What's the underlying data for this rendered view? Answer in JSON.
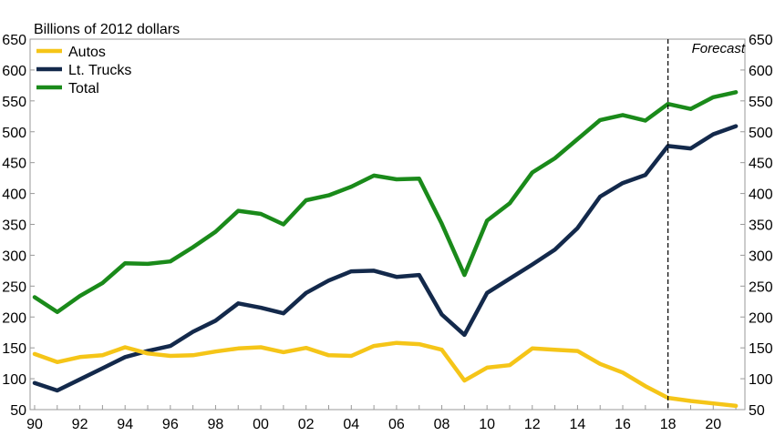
{
  "chart_data": {
    "type": "line",
    "ylabel": "Billions of 2012 dollars",
    "ylim": [
      50,
      650
    ],
    "y_ticks": [
      50,
      100,
      150,
      200,
      250,
      300,
      350,
      400,
      450,
      500,
      550,
      600,
      650
    ],
    "x": [
      1990,
      1991,
      1992,
      1993,
      1994,
      1995,
      1996,
      1997,
      1998,
      1999,
      2000,
      2001,
      2002,
      2003,
      2004,
      2005,
      2006,
      2007,
      2008,
      2009,
      2010,
      2011,
      2012,
      2013,
      2014,
      2015,
      2016,
      2017,
      2018,
      2019,
      2020,
      2021
    ],
    "x_ticks": [
      {
        "value": 1990,
        "label": "90"
      },
      {
        "value": 1992,
        "label": "92"
      },
      {
        "value": 1994,
        "label": "94"
      },
      {
        "value": 1996,
        "label": "96"
      },
      {
        "value": 1998,
        "label": "98"
      },
      {
        "value": 2000,
        "label": "00"
      },
      {
        "value": 2002,
        "label": "02"
      },
      {
        "value": 2004,
        "label": "04"
      },
      {
        "value": 2006,
        "label": "06"
      },
      {
        "value": 2008,
        "label": "08"
      },
      {
        "value": 2010,
        "label": "10"
      },
      {
        "value": 2012,
        "label": "12"
      },
      {
        "value": 2014,
        "label": "14"
      },
      {
        "value": 2016,
        "label": "16"
      },
      {
        "value": 2018,
        "label": "18"
      },
      {
        "value": 2020,
        "label": "20"
      }
    ],
    "grid": false,
    "legend_position": "top-left",
    "series": [
      {
        "name": "Autos",
        "color": "#f5c518",
        "values": [
          140,
          127,
          135,
          138,
          151,
          141,
          137,
          138,
          144,
          149,
          151,
          143,
          150,
          138,
          137,
          153,
          158,
          156,
          147,
          97,
          118,
          122,
          149,
          147,
          145,
          124,
          110,
          88,
          69,
          64,
          60,
          56
        ]
      },
      {
        "name": "Lt. Trucks",
        "color": "#13294b",
        "values": [
          93,
          81,
          99,
          117,
          135,
          145,
          153,
          176,
          194,
          222,
          215,
          206,
          239,
          259,
          274,
          275,
          265,
          268,
          204,
          171,
          239,
          262,
          285,
          309,
          344,
          395,
          417,
          430,
          477,
          473,
          496,
          509
        ]
      },
      {
        "name": "Total",
        "color": "#1a8a1a",
        "values": [
          232,
          208,
          234,
          255,
          287,
          286,
          290,
          313,
          338,
          372,
          367,
          350,
          389,
          397,
          411,
          429,
          423,
          424,
          351,
          268,
          356,
          384,
          434,
          457,
          488,
          519,
          527,
          518,
          545,
          537,
          556,
          564
        ]
      }
    ],
    "forecast_line": {
      "x": 2018,
      "label": "Forecast"
    }
  }
}
